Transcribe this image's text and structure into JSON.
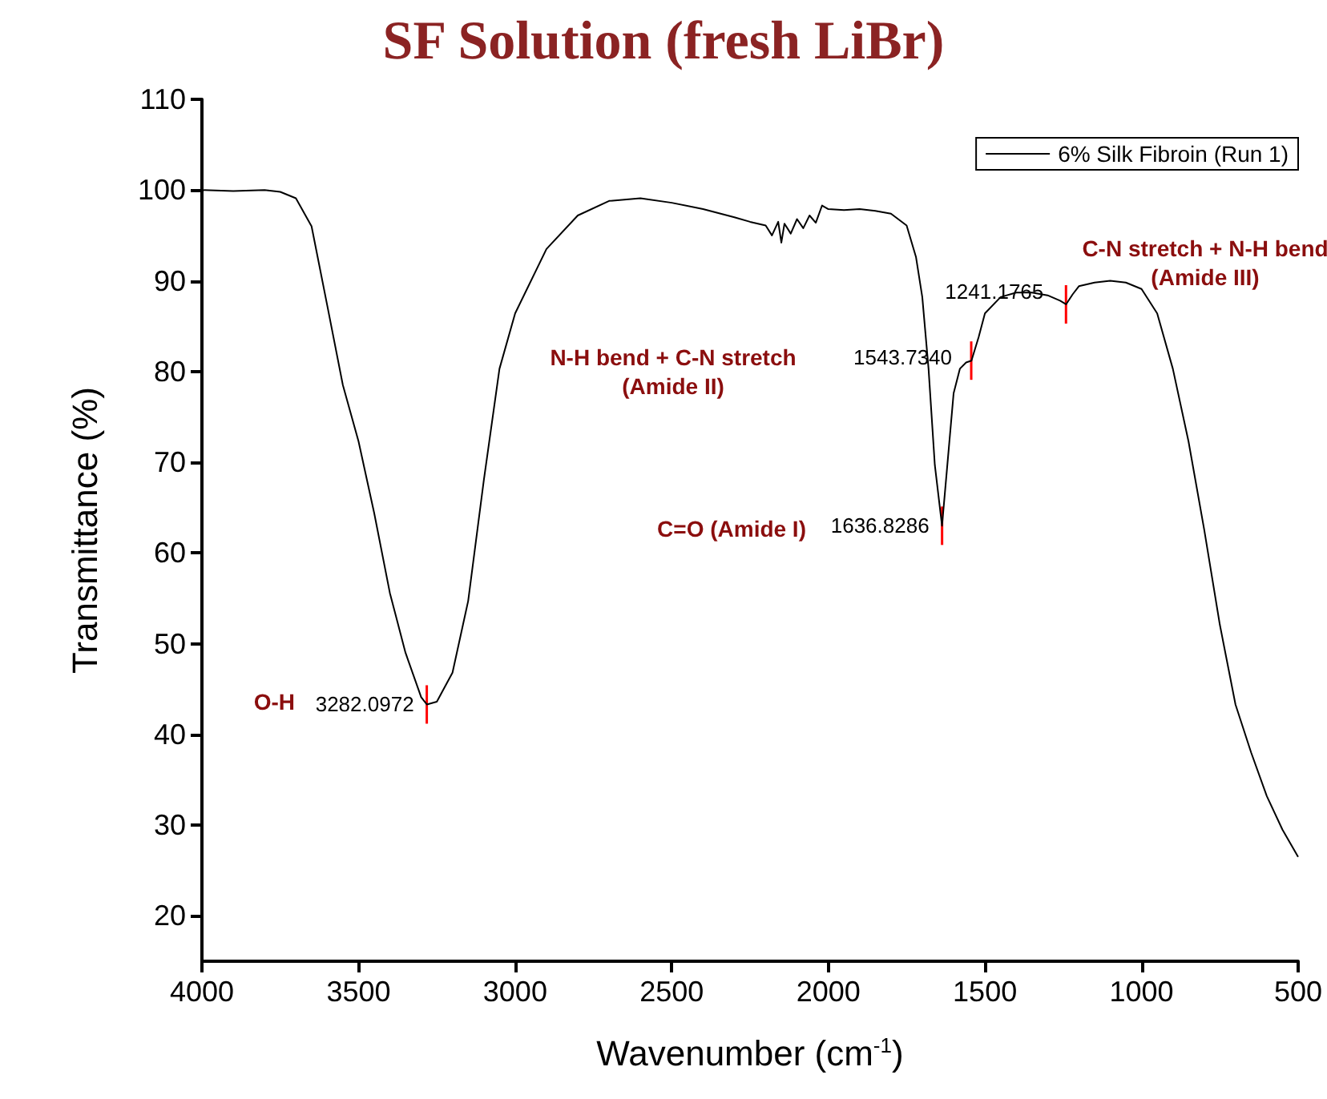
{
  "chart_data": {
    "type": "line",
    "title": "SF Solution (fresh LiBr)",
    "xlabel": "Wavenumber (cm$^{-1}$)",
    "ylabel": "Transmittance (%)",
    "x": [
      4000,
      3900,
      3800,
      3750,
      3700,
      3650,
      3600,
      3550,
      3500,
      3450,
      3400,
      3350,
      3300,
      3282,
      3250,
      3200,
      3150,
      3100,
      3050,
      3000,
      2900,
      2800,
      2700,
      2600,
      2500,
      2400,
      2300,
      2250,
      2200,
      2180,
      2160,
      2150,
      2140,
      2120,
      2100,
      2080,
      2060,
      2040,
      2020,
      2000,
      1950,
      1900,
      1850,
      1800,
      1750,
      1720,
      1700,
      1680,
      1660,
      1637,
      1620,
      1600,
      1580,
      1560,
      1543,
      1520,
      1500,
      1450,
      1400,
      1350,
      1300,
      1260,
      1241,
      1220,
      1200,
      1150,
      1100,
      1050,
      1000,
      950,
      900,
      850,
      800,
      750,
      700,
      650,
      600,
      550,
      500
    ],
    "series": [
      {
        "name": "6% Silk Fibroin (Run 1)",
        "color": "#000000",
        "values": [
          100,
          99.9,
          100,
          99.8,
          99.1,
          96,
          87.3,
          78.5,
          72.3,
          64.4,
          55.6,
          49,
          44.1,
          43.3,
          43.6,
          46.8,
          54.7,
          68,
          80.3,
          86.4,
          93.5,
          97.2,
          98.8,
          99.1,
          98.6,
          97.9,
          97,
          96.5,
          96.1,
          95,
          96.5,
          94.2,
          96.3,
          95.2,
          96.8,
          95.8,
          97.2,
          96.4,
          98.3,
          97.9,
          97.8,
          97.9,
          97.7,
          97.4,
          96.1,
          92.6,
          88.2,
          80.3,
          69.7,
          63,
          69.7,
          77.6,
          80.3,
          81,
          81.2,
          83.8,
          86.4,
          88.2,
          88.7,
          88.7,
          88.4,
          87.8,
          87.4,
          88.5,
          89.4,
          89.8,
          90,
          89.8,
          89.1,
          86.4,
          80.3,
          72.3,
          62.6,
          52.1,
          43.3,
          38,
          33.2,
          29.5,
          26.5
        ]
      }
    ],
    "xlim": [
      4000,
      500
    ],
    "xticks": [
      4000,
      3500,
      3000,
      2500,
      2000,
      1500,
      1000,
      500
    ],
    "ylim": [
      15,
      110
    ],
    "yticks": [
      20,
      30,
      40,
      50,
      60,
      70,
      80,
      90,
      100,
      110
    ],
    "grid": false,
    "legend": "top right",
    "marker": "none",
    "line_style": "solid",
    "annotations": [
      "O-H",
      {
        "text": "3282.0972",
        "x": 3282.0972,
        "y": 43.3
      },
      "N-H bend + C-N stretch\n(Amide II)",
      {
        "text": "1543.7340",
        "x": 1543.734,
        "y": 81.2
      },
      "C=O (Amide I)",
      {
        "text": "1636.8286",
        "x": 1636.8286,
        "y": 63
      },
      {
        "text": "1241.1765",
        "x": 1241.1765,
        "y": 87.4
      },
      "C-N stretch + N-H bend\n(Amide III)"
    ]
  }
}
